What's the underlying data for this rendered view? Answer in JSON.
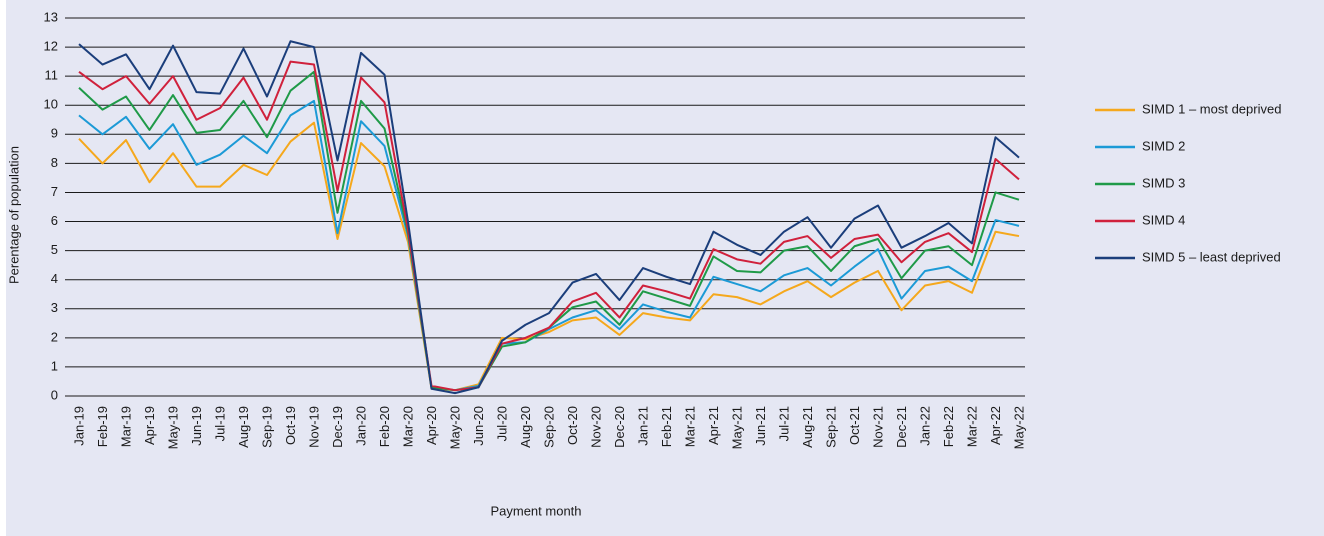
{
  "chart_data": {
    "type": "line",
    "x_label": "Payment month",
    "y_label": "Perentage of population",
    "categories": [
      "Jan-19",
      "Feb-19",
      "Mar-19",
      "Apr-19",
      "May-19",
      "Jun-19",
      "Jul-19",
      "Aug-19",
      "Sep-19",
      "Oct-19",
      "Nov-19",
      "Dec-19",
      "Jan-20",
      "Feb-20",
      "Mar-20",
      "Apr-20",
      "May-20",
      "Jun-20",
      "Jul-20",
      "Aug-20",
      "Sep-20",
      "Oct-20",
      "Nov-20",
      "Dec-20",
      "Jan-21",
      "Feb-21",
      "Mar-21",
      "Apr-21",
      "May-21",
      "Jun-21",
      "Jul-21",
      "Aug-21",
      "Sep-21",
      "Oct-21",
      "Nov-21",
      "Dec-21",
      "Jan-22",
      "Feb-22",
      "Mar-22",
      "Apr-22",
      "May-22"
    ],
    "series": [
      {
        "name": "SIMD 1 – most deprived",
        "color": "#f5a81c",
        "values": [
          8.85,
          8.0,
          8.8,
          7.35,
          8.35,
          7.2,
          7.2,
          7.95,
          7.6,
          8.75,
          9.4,
          5.4,
          8.7,
          7.9,
          5.3,
          0.25,
          0.2,
          0.4,
          2.0,
          1.95,
          2.2,
          2.6,
          2.7,
          2.1,
          2.85,
          2.7,
          2.6,
          3.5,
          3.4,
          3.15,
          3.6,
          3.95,
          3.4,
          3.9,
          4.3,
          2.95,
          3.8,
          3.95,
          3.55,
          5.65,
          5.5
        ]
      },
      {
        "name": "SIMD 2",
        "color": "#1c9ad6",
        "values": [
          9.65,
          9.0,
          9.6,
          8.5,
          9.35,
          7.95,
          8.3,
          8.95,
          8.35,
          9.65,
          10.15,
          5.6,
          9.45,
          8.6,
          5.5,
          0.3,
          0.2,
          0.35,
          1.8,
          1.85,
          2.3,
          2.7,
          2.95,
          2.3,
          3.15,
          2.9,
          2.7,
          4.1,
          3.85,
          3.6,
          4.15,
          4.4,
          3.8,
          4.45,
          5.05,
          3.35,
          4.3,
          4.45,
          3.95,
          6.05,
          5.85
        ]
      },
      {
        "name": "SIMD 3",
        "color": "#1f9a48",
        "values": [
          10.6,
          9.85,
          10.3,
          9.15,
          10.35,
          9.05,
          9.15,
          10.15,
          8.9,
          10.5,
          11.15,
          6.3,
          10.15,
          9.2,
          5.6,
          0.3,
          0.2,
          0.3,
          1.7,
          1.85,
          2.35,
          3.05,
          3.25,
          2.45,
          3.6,
          3.35,
          3.1,
          4.8,
          4.3,
          4.25,
          5.0,
          5.15,
          4.3,
          5.15,
          5.4,
          4.05,
          5.0,
          5.15,
          4.5,
          7.0,
          6.75
        ]
      },
      {
        "name": "SIMD 4",
        "color": "#d0213c",
        "values": [
          11.15,
          10.55,
          11.0,
          10.05,
          11.0,
          9.5,
          9.9,
          10.95,
          9.5,
          11.5,
          11.4,
          7.05,
          10.95,
          10.1,
          5.7,
          0.35,
          0.2,
          0.3,
          1.8,
          2.0,
          2.35,
          3.25,
          3.55,
          2.7,
          3.8,
          3.6,
          3.35,
          5.05,
          4.7,
          4.55,
          5.3,
          5.5,
          4.75,
          5.4,
          5.55,
          4.6,
          5.3,
          5.6,
          4.95,
          8.15,
          7.45
        ]
      },
      {
        "name": "SIMD 5 – least deprived",
        "color": "#1b3e7b",
        "values": [
          12.1,
          11.4,
          11.75,
          10.55,
          12.05,
          10.45,
          10.4,
          11.95,
          10.3,
          12.2,
          12.0,
          8.1,
          11.8,
          11.05,
          6.0,
          0.25,
          0.1,
          0.3,
          1.9,
          2.45,
          2.85,
          3.9,
          4.2,
          3.3,
          4.4,
          4.1,
          3.85,
          5.65,
          5.2,
          4.85,
          5.65,
          6.15,
          5.1,
          6.1,
          6.55,
          5.1,
          5.5,
          5.95,
          5.25,
          8.9,
          8.2
        ]
      }
    ],
    "ylim": [
      0,
      13
    ],
    "yticks": [
      0,
      1,
      2,
      3,
      4,
      5,
      6,
      7,
      8,
      9,
      10,
      11,
      12,
      13
    ],
    "grid": true,
    "legend": "right"
  }
}
